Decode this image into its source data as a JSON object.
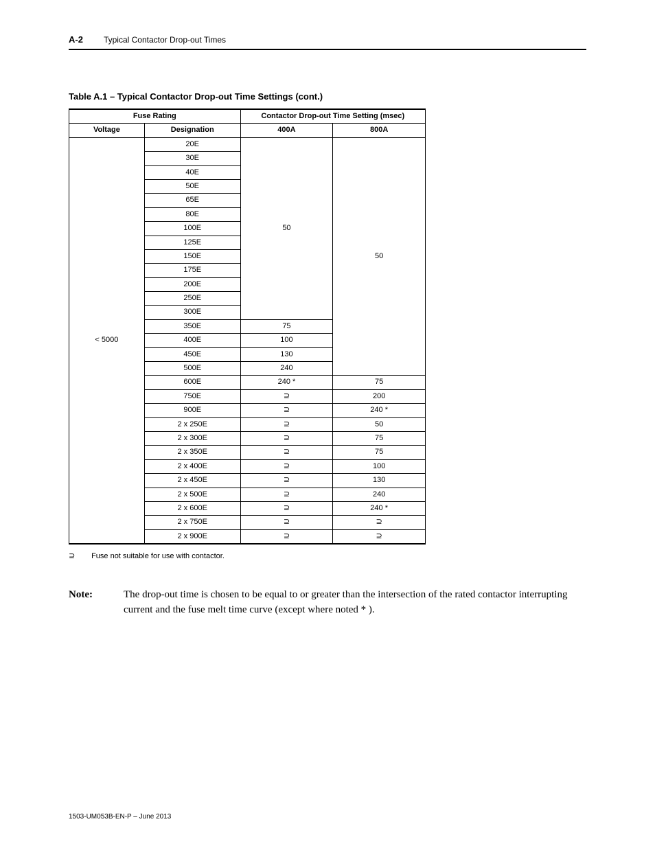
{
  "header": {
    "pageNumber": "A-2",
    "section": "Typical Contactor Drop-out Times"
  },
  "table": {
    "caption": "Table A.1 – Typical Contactor Drop-out Time Settings  (cont.)",
    "headers": {
      "fuseRating": "Fuse Rating",
      "dropoutSetting": "Contactor Drop-out Time Setting (msec)",
      "voltage": "Voltage",
      "designation": "Designation",
      "col400A": "400A",
      "col800A": "800A"
    },
    "voltage": "< 5000",
    "symbol": "⊇",
    "rows": [
      {
        "designation": "20E",
        "c400": null,
        "c800": null
      },
      {
        "designation": "30E",
        "c400": null,
        "c800": null
      },
      {
        "designation": "40E",
        "c400": null,
        "c800": null
      },
      {
        "designation": "50E",
        "c400": null,
        "c800": null
      },
      {
        "designation": "65E",
        "c400": null,
        "c800": null
      },
      {
        "designation": "80E",
        "c400": null,
        "c800": null
      },
      {
        "designation": "100E",
        "c400": "50",
        "c800": null
      },
      {
        "designation": "125E",
        "c400": null,
        "c800": null
      },
      {
        "designation": "150E",
        "c400": null,
        "c800": "50"
      },
      {
        "designation": "175E",
        "c400": null,
        "c800": null
      },
      {
        "designation": "200E",
        "c400": null,
        "c800": null
      },
      {
        "designation": "250E",
        "c400": null,
        "c800": null
      },
      {
        "designation": "300E",
        "c400": null,
        "c800": null
      },
      {
        "designation": "350E",
        "c400": "75",
        "c800": null
      },
      {
        "designation": "400E",
        "c400": "100",
        "c800": null
      },
      {
        "designation": "450E",
        "c400": "130",
        "c800": null
      },
      {
        "designation": "500E",
        "c400": "240",
        "c800": null
      },
      {
        "designation": "600E",
        "c400": "240 *",
        "c800": "75"
      },
      {
        "designation": "750E",
        "c400": "⊇",
        "c800": "200"
      },
      {
        "designation": "900E",
        "c400": "⊇",
        "c800": "240 *"
      },
      {
        "designation": "2 x 250E",
        "c400": "⊇",
        "c800": "50"
      },
      {
        "designation": "2 x 300E",
        "c400": "⊇",
        "c800": "75"
      },
      {
        "designation": "2 x 350E",
        "c400": "⊇",
        "c800": "75"
      },
      {
        "designation": "2 x 400E",
        "c400": "⊇",
        "c800": "100"
      },
      {
        "designation": "2 x 450E",
        "c400": "⊇",
        "c800": "130"
      },
      {
        "designation": "2 x 500E",
        "c400": "⊇",
        "c800": "240"
      },
      {
        "designation": "2 x 600E",
        "c400": "⊇",
        "c800": "240 *"
      },
      {
        "designation": "2 x 750E",
        "c400": "⊇",
        "c800": "⊇"
      },
      {
        "designation": "2 x 900E",
        "c400": "⊇",
        "c800": "⊇"
      }
    ],
    "merge400": {
      "start": 0,
      "end": 12,
      "value": "50"
    },
    "merge800": {
      "start": 0,
      "end": 16,
      "value": "50"
    }
  },
  "footnote": {
    "symbol": "⊇",
    "text": "Fuse not suitable for use with contactor."
  },
  "note": {
    "label": "Note:",
    "text": "The drop-out time is chosen to be equal to or greater than the intersection of the rated contactor interrupting current and the fuse melt time curve (except where noted * )."
  },
  "footer": {
    "pub": "1503-UM053B-EN-P – June 2013"
  },
  "style": {
    "pageWidth": 954,
    "pageHeight": 1235,
    "textColor": "#000000",
    "bgColor": "#ffffff",
    "tableFontSize": 11,
    "headerFontSize": 12,
    "captionFontSize": 13,
    "noteFontSize": 15,
    "footerFontSize": 10
  }
}
